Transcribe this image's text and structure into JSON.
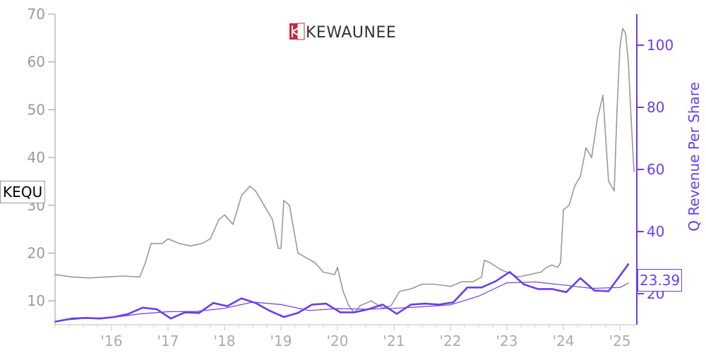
{
  "ticker": "KEQU",
  "logo": {
    "text": "KEWAUNEE",
    "brand_color": "#d71f3a"
  },
  "colors": {
    "price": "#999999",
    "revenue": "#6a3df0",
    "axis_left": "#999999",
    "axis_right": "#6a3df0"
  },
  "chart_data": {
    "type": "line",
    "title": "",
    "xlabel": "",
    "x_ticks": [
      "'16",
      "'17",
      "'18",
      "'19",
      "'20",
      "'21",
      "'22",
      "'23",
      "'24",
      "'25"
    ],
    "x_range": [
      2015.0,
      2025.3
    ],
    "y_left": {
      "label": "",
      "ticks": [
        10,
        20,
        30,
        40,
        50,
        60,
        70
      ],
      "range": [
        5,
        70
      ]
    },
    "y_right": {
      "label": "Q Revenue Per Share",
      "ticks": [
        20,
        40,
        60,
        80,
        100
      ],
      "range": [
        10,
        110
      ]
    },
    "last_value_label": "23.39",
    "series": [
      {
        "axis": "left",
        "x": [
          2015.0,
          2015.3,
          2015.6,
          2015.9,
          2016.2,
          2016.5,
          2016.6,
          2016.7,
          2016.9,
          2017.0,
          2017.2,
          2017.4,
          2017.6,
          2017.75,
          2017.9,
          2018.0,
          2018.15,
          2018.3,
          2018.45,
          2018.55,
          2018.7,
          2018.85,
          2018.95,
          2019.0,
          2019.05,
          2019.15,
          2019.3,
          2019.45,
          2019.6,
          2019.75,
          2019.95,
          2020.0,
          2020.1,
          2020.2,
          2020.3,
          2020.4,
          2020.6,
          2020.8,
          2020.95,
          2021.1,
          2021.3,
          2021.5,
          2021.7,
          2021.9,
          2022.0,
          2022.2,
          2022.4,
          2022.55,
          2022.6,
          2022.7,
          2022.9,
          2023.0,
          2023.2,
          2023.4,
          2023.6,
          2023.7,
          2023.8,
          2023.9,
          2023.95,
          2024.0,
          2024.1,
          2024.2,
          2024.3,
          2024.4,
          2024.5,
          2024.6,
          2024.7,
          2024.8,
          2024.9,
          2024.95,
          2025.0,
          2025.05,
          2025.1,
          2025.15,
          2025.2,
          2025.25
        ],
        "y": [
          15.5,
          15,
          14.8,
          15,
          15.2,
          15,
          18,
          22,
          22,
          23,
          22,
          21.5,
          22,
          23,
          27,
          28,
          26,
          32,
          34,
          33,
          30,
          27,
          21,
          21,
          31,
          30,
          20,
          19,
          18,
          16,
          15.5,
          17,
          12,
          9,
          7.5,
          9,
          10,
          8.5,
          9,
          12,
          12.5,
          13.5,
          13.5,
          13.2,
          13,
          14,
          14,
          15,
          18.5,
          18,
          16.5,
          16,
          15,
          15.5,
          16,
          17,
          17.5,
          17,
          18,
          29,
          30,
          34,
          36,
          42,
          40,
          48,
          53,
          35,
          33,
          50,
          63,
          67,
          66,
          60,
          48,
          37
        ]
      },
      {
        "axis": "right",
        "x": [
          2015.0,
          2015.3,
          2015.55,
          2015.8,
          2016.05,
          2016.3,
          2016.55,
          2016.8,
          2017.05,
          2017.3,
          2017.55,
          2017.8,
          2018.05,
          2018.3,
          2018.55,
          2018.8,
          2019.05,
          2019.3,
          2019.55,
          2019.8,
          2020.05,
          2020.3,
          2020.55,
          2020.8,
          2021.05,
          2021.3,
          2021.55,
          2021.8,
          2022.05,
          2022.3,
          2022.55,
          2022.8,
          2023.05,
          2023.3,
          2023.55,
          2023.8,
          2024.05,
          2024.3,
          2024.55,
          2024.8,
          2025.05,
          2025.15
        ],
        "y": [
          11,
          12,
          12.2,
          12,
          12.5,
          13.5,
          15.5,
          15,
          12,
          14,
          13.8,
          17,
          16,
          18.5,
          17,
          14.5,
          12.5,
          13.8,
          16.5,
          16.8,
          14,
          14,
          15,
          16.5,
          13.5,
          16.5,
          16.8,
          16.5,
          17.2,
          22,
          22,
          24,
          27,
          23,
          21.5,
          21.5,
          20.5,
          25,
          21,
          20.8,
          27,
          29.5
        ]
      },
      {
        "axis": "right",
        "x": [
          2015.0,
          2015.5,
          2016.0,
          2016.5,
          2017.0,
          2017.5,
          2018.0,
          2018.5,
          2019.0,
          2019.5,
          2020.0,
          2020.5,
          2021.0,
          2021.5,
          2022.0,
          2022.5,
          2023.0,
          2023.5,
          2024.0,
          2024.5,
          2025.0,
          2025.15
        ],
        "y": [
          11.2,
          12,
          12.3,
          13.5,
          14.2,
          14.3,
          15.3,
          17.3,
          16.5,
          14.6,
          15.2,
          15.0,
          15.3,
          15.8,
          16.4,
          19.2,
          23.5,
          23.8,
          22.8,
          21.7,
          22.0,
          23.39
        ]
      }
    ]
  }
}
